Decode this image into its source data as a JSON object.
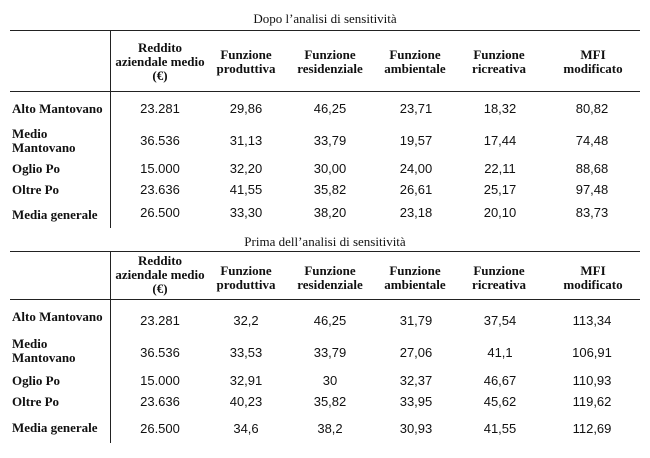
{
  "tables": [
    {
      "caption": "Dopo l’analisi di sensitività",
      "headers": [
        "Reddito aziendale medio (€)",
        "Funzione produttiva",
        "Funzione residenziale",
        "Funzione ambientale",
        "Funzione ricreativa",
        "MFI modificato"
      ],
      "rows": [
        {
          "label": "Alto Mantovano",
          "values": [
            "23.281",
            "29,86",
            "46,25",
            "23,71",
            "18,32",
            "80,82"
          ]
        },
        {
          "label": "Medio Mantovano",
          "values": [
            "36.536",
            "31,13",
            "33,79",
            "19,57",
            "17,44",
            "74,48"
          ]
        },
        {
          "label": "Oglio Po",
          "values": [
            "15.000",
            "32,20",
            "30,00",
            "24,00",
            "22,11",
            "88,68"
          ]
        },
        {
          "label": "Oltre Po",
          "values": [
            "23.636",
            "41,55",
            "35,82",
            "26,61",
            "25,17",
            "97,48"
          ]
        },
        {
          "label": "Media generale",
          "values": [
            "26.500",
            "33,30",
            "38,20",
            "23,18",
            "20,10",
            "83,73"
          ]
        }
      ]
    },
    {
      "caption": "Prima dell’analisi di sensitività",
      "headers": [
        "Reddito aziendale medio (€)",
        "Funzione produttiva",
        "Funzione residenziale",
        "Funzione ambientale",
        "Funzione ricreativa",
        "MFI modificato"
      ],
      "rows": [
        {
          "label": "Alto Mantovano",
          "values": [
            "23.281",
            "32,2",
            "46,25",
            "31,79",
            "37,54",
            "113,34"
          ]
        },
        {
          "label": "Medio Mantovano",
          "values": [
            "36.536",
            "33,53",
            "33,79",
            "27,06",
            "41,1",
            "106,91"
          ]
        },
        {
          "label": "Oglio Po",
          "values": [
            "15.000",
            "32,91",
            "30",
            "32,37",
            "46,67",
            "110,93"
          ]
        },
        {
          "label": "Oltre Po",
          "values": [
            "23.636",
            "40,23",
            "35,82",
            "33,95",
            "45,62",
            "119,62"
          ]
        },
        {
          "label": "Media generale",
          "values": [
            "26.500",
            "34,6",
            "38,2",
            "30,93",
            "41,55",
            "112,69"
          ]
        }
      ]
    }
  ]
}
